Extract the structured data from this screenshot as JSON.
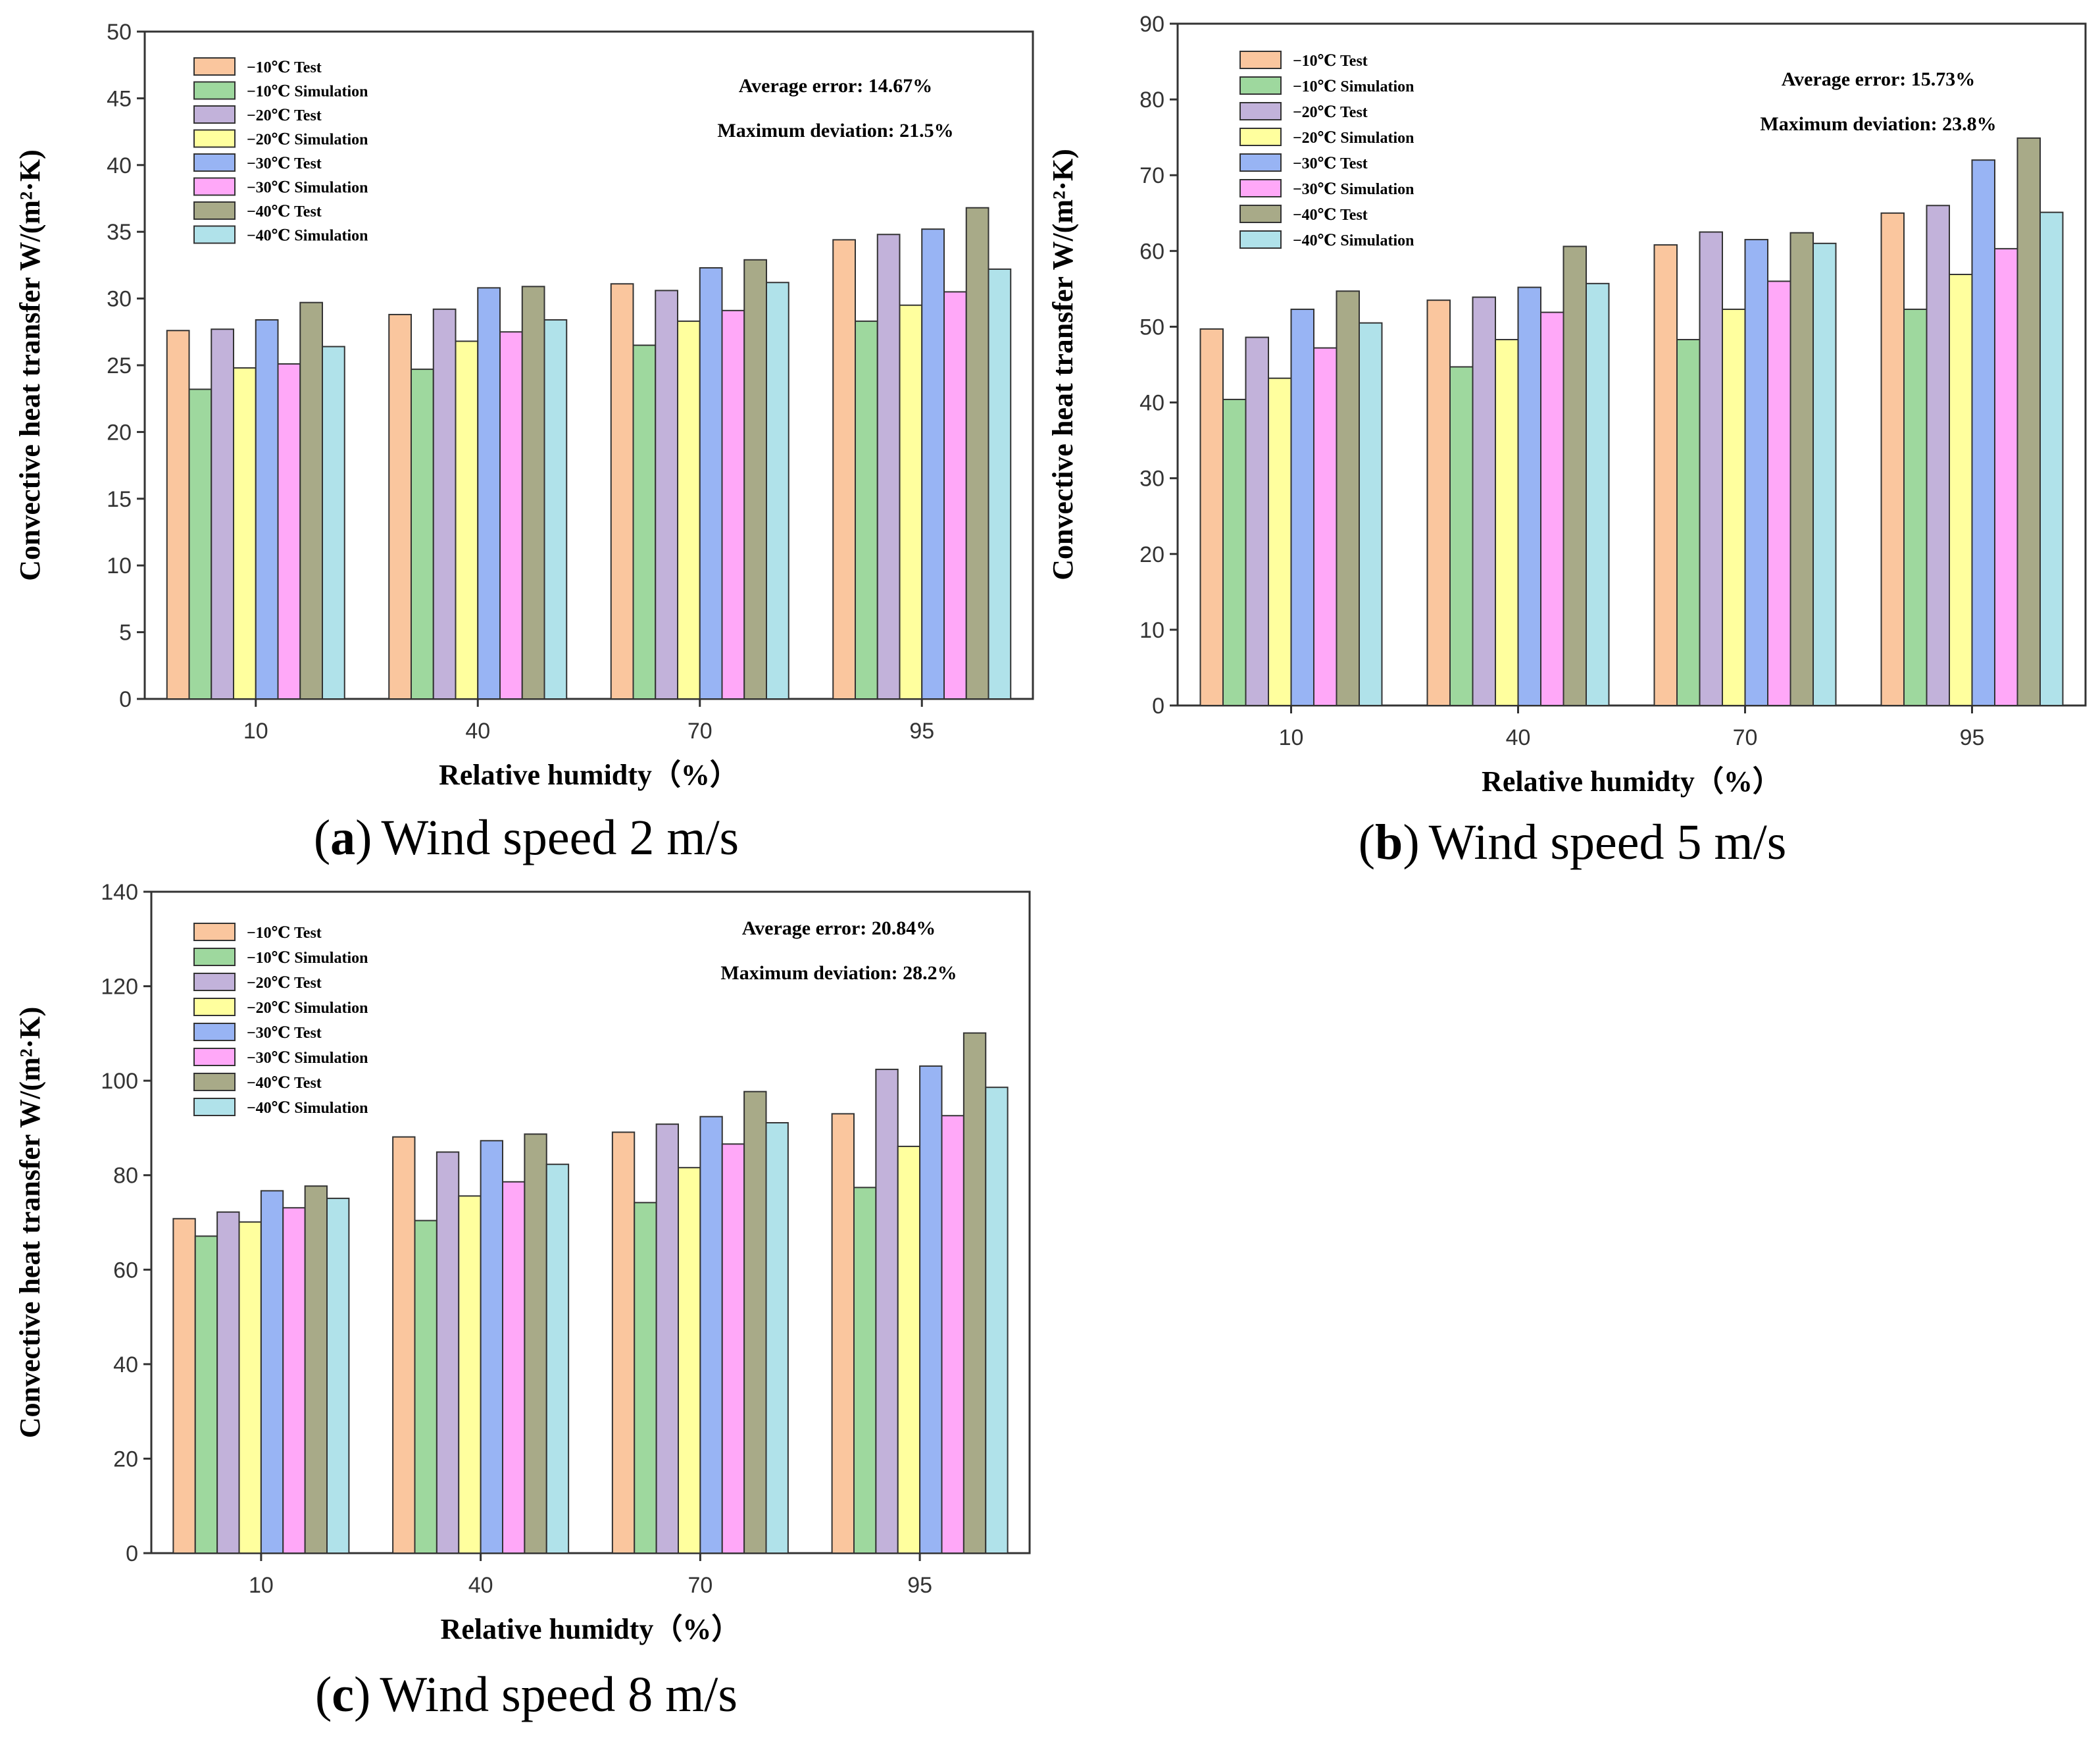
{
  "colors": [
    "#FAC69E",
    "#9ED89E",
    "#C2B2DA",
    "#FFFF9E",
    "#98B4F4",
    "#FFA8F8",
    "#A8AA88",
    "#B0E2EA"
  ],
  "chart_data": [
    {
      "type": "bar",
      "caption_letter": "a",
      "caption_text": "Wind speed 2 m/s",
      "caption_open": "(",
      "caption_close": ")",
      "xlabel": "Relative humidty（%）",
      "ylabel": "Convective heat transfer W/(m²·K)",
      "ylim": [
        0,
        50
      ],
      "yticks": [
        0,
        5,
        10,
        15,
        20,
        25,
        30,
        35,
        40,
        45,
        50
      ],
      "categories": [
        "10",
        "40",
        "70",
        "95"
      ],
      "annotations": [
        "Average error: 14.67%",
        "Maximum deviation: 21.5%"
      ],
      "grid": false,
      "legend_position": "top-left",
      "series": [
        {
          "name": "−10℃ Test",
          "values": [
            27.6,
            28.8,
            31.1,
            34.4
          ]
        },
        {
          "name": "−10℃ Simulation",
          "values": [
            23.2,
            24.7,
            26.5,
            28.3
          ]
        },
        {
          "name": "−20℃ Test",
          "values": [
            27.7,
            29.2,
            30.6,
            34.8
          ]
        },
        {
          "name": "−20℃ Simulation",
          "values": [
            24.8,
            26.8,
            28.3,
            29.5
          ]
        },
        {
          "name": "−30℃ Test",
          "values": [
            28.4,
            30.8,
            32.3,
            35.2
          ]
        },
        {
          "name": "−30℃ Simulation",
          "values": [
            25.1,
            27.5,
            29.1,
            30.5
          ]
        },
        {
          "name": "−40℃ Test",
          "values": [
            29.7,
            30.9,
            32.9,
            36.8
          ]
        },
        {
          "name": "−40℃ Simulation",
          "values": [
            26.4,
            28.4,
            31.2,
            32.2
          ]
        }
      ]
    },
    {
      "type": "bar",
      "caption_letter": "b",
      "caption_text": "Wind speed 5 m/s",
      "caption_open": "(",
      "caption_close": ")",
      "xlabel": "Relative humidty（%）",
      "ylabel": "Convective heat transfer W/(m²·K)",
      "ylim": [
        0,
        90
      ],
      "yticks": [
        0,
        10,
        20,
        30,
        40,
        50,
        60,
        70,
        80,
        90
      ],
      "categories": [
        "10",
        "40",
        "70",
        "95"
      ],
      "annotations": [
        "Average error: 15.73%",
        "Maximum deviation: 23.8%"
      ],
      "grid": false,
      "legend_position": "top-left",
      "series": [
        {
          "name": "−10℃ Test",
          "values": [
            49.7,
            53.5,
            60.8,
            65.0
          ]
        },
        {
          "name": "−10℃ Simulation",
          "values": [
            40.4,
            44.7,
            48.3,
            52.3
          ]
        },
        {
          "name": "−20℃ Test",
          "values": [
            48.6,
            53.9,
            62.5,
            66.0
          ]
        },
        {
          "name": "−20℃ Simulation",
          "values": [
            43.2,
            48.3,
            52.3,
            56.9
          ]
        },
        {
          "name": "−30℃ Test",
          "values": [
            52.3,
            55.2,
            61.5,
            72.0
          ]
        },
        {
          "name": "−30℃ Simulation",
          "values": [
            47.2,
            51.9,
            56.0,
            60.3
          ]
        },
        {
          "name": "−40℃ Test",
          "values": [
            54.7,
            60.6,
            62.4,
            74.9
          ]
        },
        {
          "name": "−40℃ Simulation",
          "values": [
            50.5,
            55.7,
            61.0,
            65.1
          ]
        }
      ]
    },
    {
      "type": "bar",
      "caption_letter": "c",
      "caption_text": "Wind speed 8 m/s",
      "caption_open": "(",
      "caption_close": ")",
      "xlabel": "Relative humidty（%）",
      "ylabel": "Convective heat transfer W/(m²·K)",
      "ylim": [
        0,
        140
      ],
      "yticks": [
        0,
        20,
        40,
        60,
        80,
        100,
        120,
        140
      ],
      "categories": [
        "10",
        "40",
        "70",
        "95"
      ],
      "annotations": [
        "Average error: 20.84%",
        "Maximum deviation: 28.2%"
      ],
      "grid": false,
      "legend_position": "top-left",
      "series": [
        {
          "name": "−10℃ Test",
          "values": [
            70.8,
            88.1,
            89.1,
            93.0
          ]
        },
        {
          "name": "−10℃ Simulation",
          "values": [
            67.1,
            70.4,
            74.2,
            77.4
          ]
        },
        {
          "name": "−20℃ Test",
          "values": [
            72.2,
            84.9,
            90.8,
            102.4
          ]
        },
        {
          "name": "−20℃ Simulation",
          "values": [
            70.1,
            75.6,
            81.6,
            86.1
          ]
        },
        {
          "name": "−30℃ Test",
          "values": [
            76.7,
            87.3,
            92.4,
            103.1
          ]
        },
        {
          "name": "−30℃ Simulation",
          "values": [
            73.1,
            78.6,
            86.6,
            92.6
          ]
        },
        {
          "name": "−40℃ Test",
          "values": [
            77.7,
            88.7,
            97.7,
            110.1
          ]
        },
        {
          "name": "−40℃ Simulation",
          "values": [
            75.1,
            82.3,
            91.1,
            98.6
          ]
        }
      ]
    }
  ]
}
